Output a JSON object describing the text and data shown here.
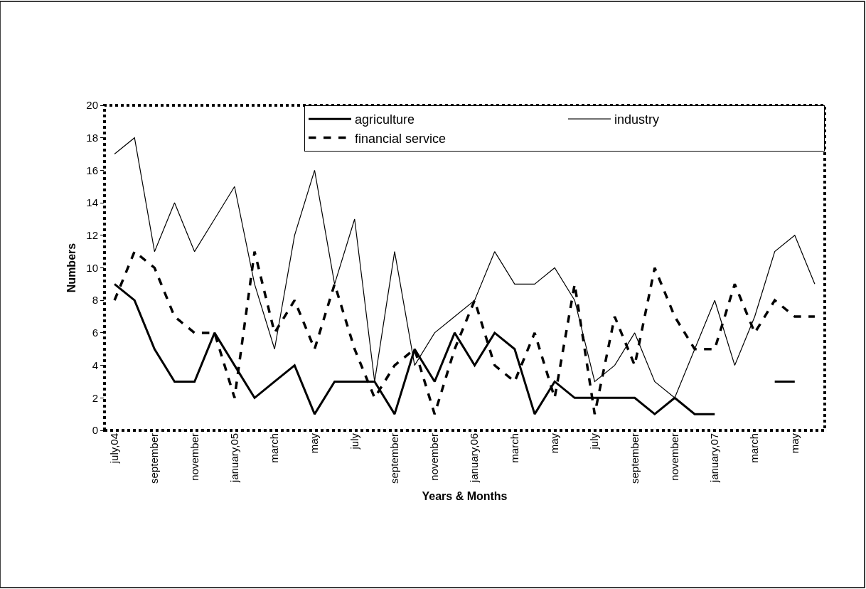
{
  "chart_data": {
    "type": "line",
    "xlabel": "Years & Months",
    "ylabel": "Numbers",
    "categories": [
      "july,04",
      null,
      "september",
      null,
      "november",
      null,
      "january,05",
      null,
      "march",
      null,
      "may",
      null,
      "july",
      null,
      "september",
      null,
      "november",
      null,
      "january,06",
      null,
      "march",
      null,
      "may",
      null,
      "july",
      null,
      "september",
      null,
      "november",
      null,
      "january,07",
      null,
      "march",
      null,
      "may",
      null
    ],
    "series": [
      {
        "name": "agriculture",
        "color": "#000000",
        "line_style": "solid",
        "values": [
          9,
          8,
          5,
          3,
          3,
          6,
          4,
          2,
          3,
          4,
          1,
          3,
          3,
          3,
          1,
          5,
          3,
          6,
          4,
          6,
          5,
          1,
          3,
          2,
          2,
          2,
          2,
          1,
          2,
          1,
          1,
          null,
          null,
          3,
          3,
          null
        ]
      },
      {
        "name": "industry",
        "color": "#000000",
        "line_style": "solid",
        "values": [
          17,
          18,
          11,
          14,
          11,
          13,
          15,
          9,
          5,
          12,
          16,
          9,
          13,
          3,
          11,
          4,
          6,
          7,
          8,
          11,
          9,
          9,
          10,
          8,
          3,
          4,
          6,
          3,
          2,
          5,
          8,
          4,
          7,
          11,
          12,
          9
        ]
      },
      {
        "name": "financial service",
        "color": "#000000",
        "line_style": "dashed",
        "values": [
          8,
          11,
          10,
          7,
          6,
          6,
          2,
          11,
          6,
          8,
          5,
          9,
          5,
          2,
          4,
          5,
          1,
          5,
          8,
          4,
          3,
          6,
          2,
          9,
          1,
          7,
          4,
          10,
          7,
          5,
          5,
          9,
          6,
          8,
          7,
          7
        ]
      }
    ],
    "ylim": [
      0,
      20
    ],
    "yticks": [
      0,
      2,
      4,
      6,
      8,
      10,
      12,
      14,
      16,
      18,
      20
    ],
    "grid": false,
    "legend": "top right",
    "marker": "none"
  }
}
